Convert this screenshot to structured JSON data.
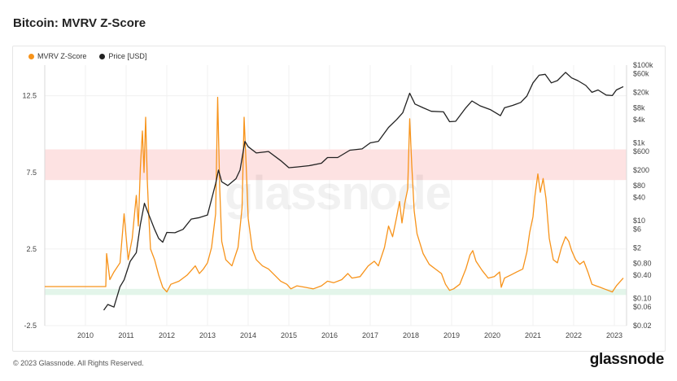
{
  "page": {
    "title": "Bitcoin: MVRV Z-Score",
    "copyright": "© 2023 Glassnode. All Rights Reserved.",
    "brand": "glassnode",
    "watermark": "glassnode"
  },
  "legend": [
    {
      "label": "MVRV Z-Score",
      "color": "#f7931a"
    },
    {
      "label": "Price [USD]",
      "color": "#222222"
    }
  ],
  "chart_data": {
    "type": "line",
    "title": "Bitcoin: MVRV Z-Score",
    "x_range": [
      2009.0,
      2023.3
    ],
    "x_ticks": [
      "2010",
      "2011",
      "2012",
      "2013",
      "2014",
      "2015",
      "2016",
      "2017",
      "2018",
      "2019",
      "2020",
      "2021",
      "2022",
      "2023"
    ],
    "y_left": {
      "range": [
        -2.5,
        14.5
      ],
      "ticks": [
        "12.5",
        "7.5",
        "2.5",
        "-2.5"
      ]
    },
    "y_right": {
      "scale": "log",
      "range": [
        0.02,
        100000
      ],
      "ticks": [
        "$100k",
        "$60k",
        "$20k",
        "$8k",
        "$4k",
        "$1k",
        "$600",
        "$200",
        "$80",
        "$40",
        "$10",
        "$6",
        "$2",
        "$0.80",
        "$0.40",
        "$0.10",
        "$0.06",
        "$0.02"
      ]
    },
    "bands": [
      {
        "zone": "overvalued",
        "from": 7.0,
        "to": 9.0,
        "color": "#fde2e2"
      },
      {
        "zone": "undervalued",
        "from": -0.1,
        "to": -0.5,
        "color": "#e3f5ea"
      }
    ],
    "series": [
      {
        "name": "MVRV Z-Score",
        "axis": "left",
        "color": "#f7931a",
        "points": [
          [
            2009.0,
            0.05
          ],
          [
            2010.5,
            0.05
          ],
          [
            2010.52,
            2.2
          ],
          [
            2010.6,
            0.5
          ],
          [
            2010.7,
            1.0
          ],
          [
            2010.85,
            1.6
          ],
          [
            2010.95,
            4.8
          ],
          [
            2011.05,
            1.8
          ],
          [
            2011.15,
            3.2
          ],
          [
            2011.25,
            6.0
          ],
          [
            2011.3,
            4.0
          ],
          [
            2011.35,
            7.8
          ],
          [
            2011.4,
            10.2
          ],
          [
            2011.44,
            7.5
          ],
          [
            2011.48,
            11.1
          ],
          [
            2011.52,
            7.0
          ],
          [
            2011.56,
            4.5
          ],
          [
            2011.6,
            2.5
          ],
          [
            2011.7,
            1.8
          ],
          [
            2011.8,
            0.8
          ],
          [
            2011.9,
            0.0
          ],
          [
            2012.0,
            -0.3
          ],
          [
            2012.1,
            0.2
          ],
          [
            2012.3,
            0.4
          ],
          [
            2012.5,
            0.8
          ],
          [
            2012.7,
            1.4
          ],
          [
            2012.8,
            0.9
          ],
          [
            2012.9,
            1.2
          ],
          [
            2013.0,
            1.6
          ],
          [
            2013.1,
            2.6
          ],
          [
            2013.2,
            4.8
          ],
          [
            2013.25,
            12.4
          ],
          [
            2013.3,
            6.5
          ],
          [
            2013.35,
            3.0
          ],
          [
            2013.45,
            1.8
          ],
          [
            2013.6,
            1.4
          ],
          [
            2013.75,
            2.6
          ],
          [
            2013.85,
            5.2
          ],
          [
            2013.9,
            11.1
          ],
          [
            2013.95,
            8.0
          ],
          [
            2014.0,
            4.5
          ],
          [
            2014.1,
            2.5
          ],
          [
            2014.2,
            1.8
          ],
          [
            2014.35,
            1.4
          ],
          [
            2014.5,
            1.2
          ],
          [
            2014.65,
            0.8
          ],
          [
            2014.8,
            0.4
          ],
          [
            2014.95,
            0.2
          ],
          [
            2015.05,
            -0.1
          ],
          [
            2015.2,
            0.1
          ],
          [
            2015.4,
            0.0
          ],
          [
            2015.6,
            -0.1
          ],
          [
            2015.8,
            0.1
          ],
          [
            2015.95,
            0.4
          ],
          [
            2016.1,
            0.3
          ],
          [
            2016.3,
            0.5
          ],
          [
            2016.45,
            0.9
          ],
          [
            2016.55,
            0.6
          ],
          [
            2016.75,
            0.7
          ],
          [
            2016.95,
            1.4
          ],
          [
            2017.1,
            1.7
          ],
          [
            2017.2,
            1.4
          ],
          [
            2017.35,
            2.6
          ],
          [
            2017.45,
            4.0
          ],
          [
            2017.55,
            3.3
          ],
          [
            2017.65,
            4.6
          ],
          [
            2017.72,
            5.6
          ],
          [
            2017.78,
            4.2
          ],
          [
            2017.85,
            5.5
          ],
          [
            2017.92,
            6.4
          ],
          [
            2017.97,
            11.0
          ],
          [
            2018.02,
            8.0
          ],
          [
            2018.08,
            5.0
          ],
          [
            2018.15,
            3.5
          ],
          [
            2018.3,
            2.2
          ],
          [
            2018.45,
            1.5
          ],
          [
            2018.6,
            1.2
          ],
          [
            2018.75,
            0.9
          ],
          [
            2018.85,
            0.2
          ],
          [
            2018.95,
            -0.2
          ],
          [
            2019.05,
            -0.1
          ],
          [
            2019.2,
            0.2
          ],
          [
            2019.35,
            1.2
          ],
          [
            2019.45,
            2.1
          ],
          [
            2019.52,
            2.4
          ],
          [
            2019.6,
            1.7
          ],
          [
            2019.75,
            1.1
          ],
          [
            2019.9,
            0.6
          ],
          [
            2020.05,
            0.7
          ],
          [
            2020.18,
            1.0
          ],
          [
            2020.22,
            0.0
          ],
          [
            2020.3,
            0.6
          ],
          [
            2020.45,
            0.8
          ],
          [
            2020.6,
            1.0
          ],
          [
            2020.75,
            1.2
          ],
          [
            2020.85,
            2.3
          ],
          [
            2020.92,
            3.6
          ],
          [
            2021.0,
            4.6
          ],
          [
            2021.05,
            6.0
          ],
          [
            2021.12,
            7.4
          ],
          [
            2021.18,
            6.2
          ],
          [
            2021.25,
            7.1
          ],
          [
            2021.32,
            5.8
          ],
          [
            2021.4,
            3.2
          ],
          [
            2021.5,
            1.8
          ],
          [
            2021.6,
            1.6
          ],
          [
            2021.7,
            2.6
          ],
          [
            2021.8,
            3.3
          ],
          [
            2021.88,
            3.0
          ],
          [
            2021.95,
            2.4
          ],
          [
            2022.05,
            1.8
          ],
          [
            2022.15,
            1.5
          ],
          [
            2022.25,
            1.7
          ],
          [
            2022.35,
            1.0
          ],
          [
            2022.45,
            0.2
          ],
          [
            2022.55,
            0.1
          ],
          [
            2022.65,
            0.0
          ],
          [
            2022.75,
            -0.1
          ],
          [
            2022.85,
            -0.2
          ],
          [
            2022.95,
            -0.3
          ],
          [
            2023.05,
            0.1
          ],
          [
            2023.15,
            0.4
          ],
          [
            2023.22,
            0.6
          ]
        ]
      },
      {
        "name": "Price [USD]",
        "axis": "right",
        "color": "#222222",
        "points": [
          [
            2010.45,
            0.05
          ],
          [
            2010.55,
            0.07
          ],
          [
            2010.7,
            0.06
          ],
          [
            2010.85,
            0.2
          ],
          [
            2010.95,
            0.3
          ],
          [
            2011.1,
            0.9
          ],
          [
            2011.25,
            1.5
          ],
          [
            2011.35,
            8
          ],
          [
            2011.45,
            28
          ],
          [
            2011.55,
            15
          ],
          [
            2011.7,
            6
          ],
          [
            2011.8,
            3.5
          ],
          [
            2011.9,
            2.8
          ],
          [
            2012.0,
            5
          ],
          [
            2012.2,
            4.9
          ],
          [
            2012.4,
            6
          ],
          [
            2012.6,
            11
          ],
          [
            2012.8,
            12
          ],
          [
            2013.0,
            14
          ],
          [
            2013.2,
            90
          ],
          [
            2013.27,
            200
          ],
          [
            2013.35,
            100
          ],
          [
            2013.5,
            80
          ],
          [
            2013.7,
            120
          ],
          [
            2013.8,
            200
          ],
          [
            2013.92,
            1100
          ],
          [
            2014.0,
            800
          ],
          [
            2014.2,
            550
          ],
          [
            2014.5,
            600
          ],
          [
            2014.8,
            350
          ],
          [
            2015.0,
            230
          ],
          [
            2015.2,
            240
          ],
          [
            2015.5,
            260
          ],
          [
            2015.8,
            300
          ],
          [
            2015.95,
            420
          ],
          [
            2016.2,
            420
          ],
          [
            2016.5,
            650
          ],
          [
            2016.8,
            700
          ],
          [
            2017.0,
            1000
          ],
          [
            2017.2,
            1100
          ],
          [
            2017.45,
            2500
          ],
          [
            2017.65,
            4000
          ],
          [
            2017.8,
            6000
          ],
          [
            2017.97,
            19000
          ],
          [
            2018.1,
            10000
          ],
          [
            2018.3,
            8000
          ],
          [
            2018.5,
            6500
          ],
          [
            2018.8,
            6300
          ],
          [
            2018.95,
            3500
          ],
          [
            2019.1,
            3600
          ],
          [
            2019.35,
            8000
          ],
          [
            2019.5,
            12000
          ],
          [
            2019.7,
            9000
          ],
          [
            2019.95,
            7200
          ],
          [
            2020.2,
            5000
          ],
          [
            2020.3,
            8000
          ],
          [
            2020.5,
            9200
          ],
          [
            2020.7,
            11000
          ],
          [
            2020.85,
            16000
          ],
          [
            2021.0,
            35000
          ],
          [
            2021.15,
            55000
          ],
          [
            2021.3,
            58000
          ],
          [
            2021.45,
            35000
          ],
          [
            2021.6,
            40000
          ],
          [
            2021.8,
            65000
          ],
          [
            2021.95,
            47000
          ],
          [
            2022.1,
            40000
          ],
          [
            2022.3,
            30000
          ],
          [
            2022.45,
            20000
          ],
          [
            2022.6,
            23000
          ],
          [
            2022.8,
            17000
          ],
          [
            2022.95,
            16500
          ],
          [
            2023.05,
            23000
          ],
          [
            2023.22,
            28000
          ]
        ]
      }
    ]
  }
}
